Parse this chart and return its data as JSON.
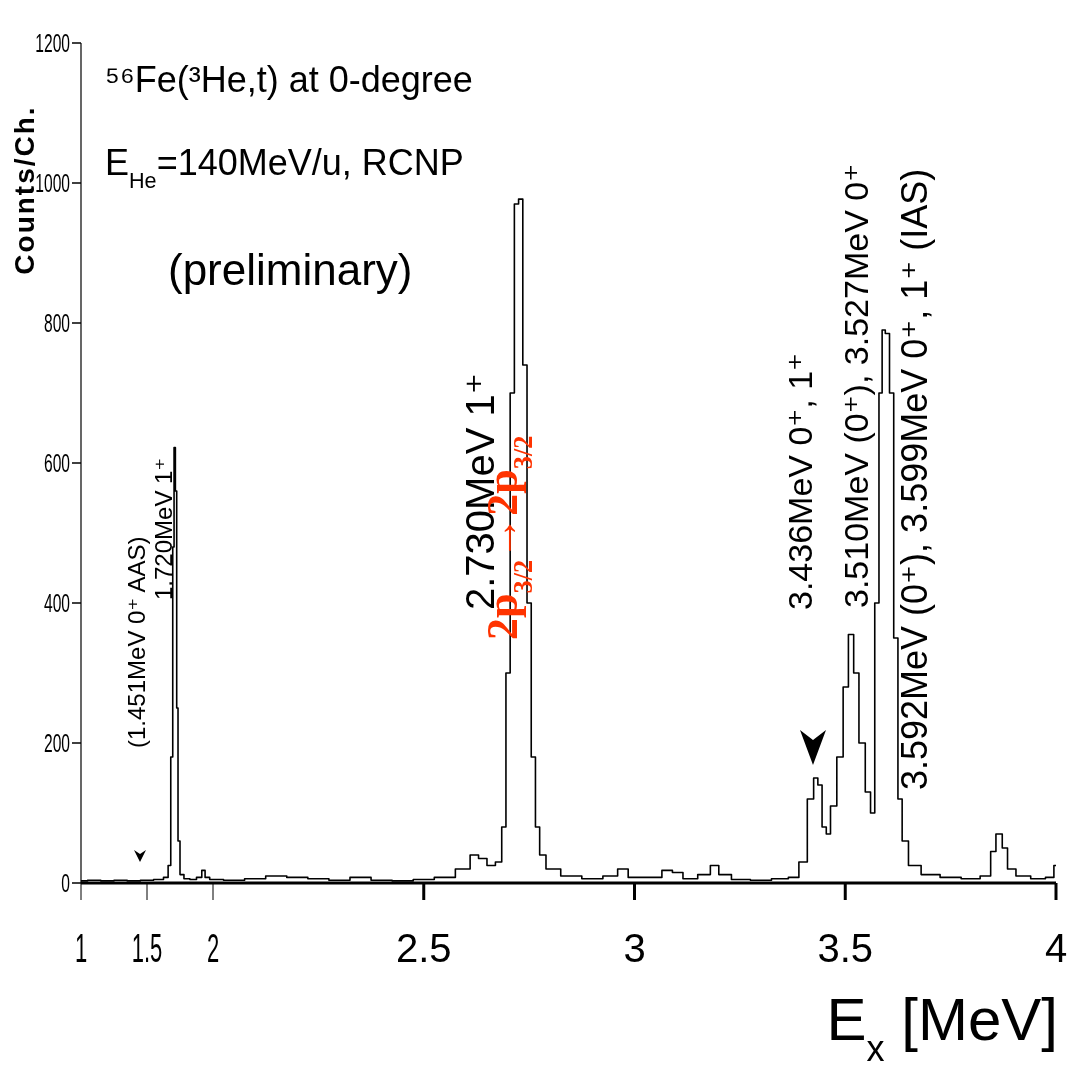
{
  "chart_data": [
    {
      "type": "step",
      "title": "⁵⁶Fe(³He,t) at 0-degree",
      "subtitle": "E$_{He}$=140MeV/u, RCNP",
      "ylabel": "Counts/Ch.",
      "annotations": [
        "(preliminary)",
        "(1.451MeV 0⁺  AAS)",
        "1.720MeV 1⁺"
      ],
      "xlim": [
        1,
        2
      ],
      "xticks": [
        1,
        1.5,
        2
      ],
      "ylim": [
        0,
        1200
      ],
      "yticks": [
        0,
        200,
        400,
        600,
        800,
        1000,
        1200
      ],
      "series": [
        {
          "color": "#000000",
          "x": [
            1.0,
            1.1,
            1.2,
            1.3,
            1.4,
            1.5,
            1.6,
            1.65,
            1.67,
            1.69,
            1.7,
            1.71,
            1.72,
            1.73,
            1.74,
            1.76,
            1.8,
            1.85,
            1.9,
            1.93,
            1.95,
            2.0
          ],
          "values": [
            3,
            4,
            3,
            4,
            3,
            4,
            5,
            8,
            25,
            180,
            480,
            622,
            560,
            250,
            60,
            12,
            6,
            5,
            8,
            18,
            8,
            5
          ]
        }
      ]
    },
    {
      "type": "step",
      "xlabel": "E$_{x}$ [MeV]",
      "annotations": [
        "2.730MeV 1⁺",
        "2p$_{3/2}$→2p$_{3/2}$",
        "3.436MeV 0⁺, 1⁺",
        "3.510MeV (0⁺), 3.527MeV 0⁺",
        "3.592MeV (0⁺), 3.599MeV 0⁺, 1⁺  (IAS)"
      ],
      "xlim": [
        2,
        4
      ],
      "xticks": [
        2.5,
        3,
        3.5,
        4
      ],
      "ylim": [
        0,
        1200
      ],
      "tick_labels": "x",
      "series": [
        {
          "color": "#000000",
          "x": [
            2.0,
            2.05,
            2.1,
            2.15,
            2.2,
            2.25,
            2.3,
            2.35,
            2.4,
            2.45,
            2.5,
            2.55,
            2.6,
            2.62,
            2.64,
            2.66,
            2.68,
            2.69,
            2.7,
            2.71,
            2.72,
            2.73,
            2.74,
            2.75,
            2.76,
            2.77,
            2.78,
            2.8,
            2.85,
            2.9,
            2.95,
            2.97,
            3.0,
            3.05,
            3.08,
            3.1,
            3.13,
            3.17,
            3.19,
            3.21,
            3.25,
            3.3,
            3.35,
            3.38,
            3.4,
            3.42,
            3.43,
            3.44,
            3.45,
            3.46,
            3.47,
            3.49,
            3.5,
            3.515,
            3.525,
            3.54,
            3.555,
            3.565,
            3.575,
            3.585,
            3.59,
            3.6,
            3.61,
            3.62,
            3.63,
            3.64,
            3.66,
            3.7,
            3.75,
            3.8,
            3.84,
            3.85,
            3.865,
            3.88,
            3.89,
            3.92,
            3.96,
            3.99,
            4.0
          ],
          "values": [
            5,
            4,
            6,
            10,
            8,
            6,
            4,
            8,
            4,
            3,
            5,
            8,
            20,
            40,
            35,
            25,
            30,
            80,
            300,
            700,
            970,
            977,
            740,
            400,
            180,
            80,
            40,
            20,
            10,
            6,
            10,
            20,
            8,
            8,
            18,
            15,
            6,
            12,
            25,
            12,
            5,
            4,
            6,
            8,
            30,
            120,
            150,
            140,
            80,
            70,
            110,
            180,
            280,
            355,
            300,
            200,
            130,
            100,
            400,
            700,
            790,
            785,
            700,
            350,
            120,
            60,
            25,
            12,
            8,
            6,
            10,
            45,
            70,
            50,
            20,
            10,
            6,
            8,
            25
          ]
        }
      ]
    }
  ]
}
